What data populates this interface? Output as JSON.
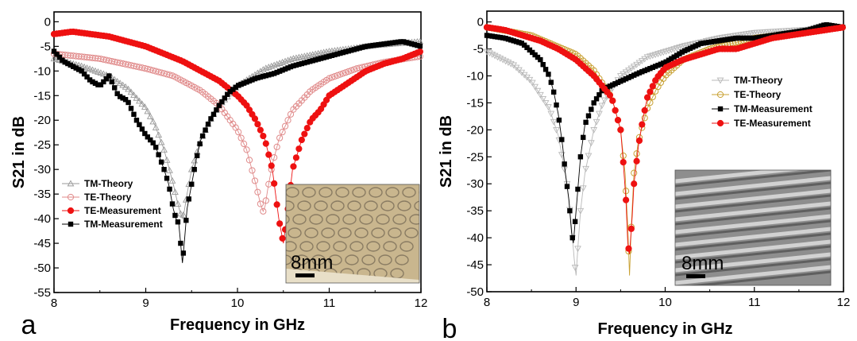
{
  "figure": {
    "panel_labels": [
      "a",
      "b"
    ],
    "inset_scale_label": "8mm"
  },
  "chart_data": [
    {
      "type": "line",
      "panel": "a",
      "title": "",
      "xlabel": "Frequency in GHz",
      "ylabel": "S21 in dB",
      "xlim": [
        8,
        12
      ],
      "ylim": [
        -55,
        2
      ],
      "xticks": [
        "8",
        "9",
        "10",
        "11",
        "12"
      ],
      "yticks": [
        "0",
        "-5",
        "-10",
        "-15",
        "-20",
        "-25",
        "-30",
        "-35",
        "-40",
        "-45",
        "-50",
        "-55"
      ],
      "legend_position": "lower-left",
      "inset": "photo of printed sample with 8mm scale bar, bottom-right",
      "series": [
        {
          "name": "TM-Theory",
          "color": "#9a9a9a",
          "marker": "open-triangle",
          "x": [
            8.0,
            8.3,
            8.6,
            8.8,
            9.0,
            9.1,
            9.2,
            9.3,
            9.35,
            9.38,
            9.4,
            9.42,
            9.45,
            9.5,
            9.6,
            9.7,
            9.8,
            10.0,
            10.3,
            10.6,
            11.0,
            11.5,
            12.0
          ],
          "y": [
            -7.5,
            -9,
            -11,
            -13.5,
            -17.5,
            -21,
            -26,
            -33,
            -37,
            -39,
            -40,
            -38.5,
            -35,
            -30,
            -24,
            -20,
            -17,
            -13,
            -9.5,
            -7.5,
            -6,
            -4.8,
            -4
          ]
        },
        {
          "name": "TE-Theory",
          "color": "#e08a8a",
          "marker": "open-circle",
          "x": [
            8.0,
            8.5,
            9.0,
            9.3,
            9.6,
            9.8,
            10.0,
            10.1,
            10.2,
            10.25,
            10.28,
            10.3,
            10.33,
            10.38,
            10.45,
            10.6,
            10.8,
            11.0,
            11.3,
            11.6,
            12.0
          ],
          "y": [
            -6.5,
            -7.5,
            -9.5,
            -11,
            -14,
            -17,
            -22,
            -26,
            -33,
            -37,
            -38.5,
            -37.5,
            -34,
            -29,
            -24,
            -18,
            -14,
            -11.5,
            -9.5,
            -8.2,
            -7
          ]
        },
        {
          "name": "TE-Measurement",
          "color": "#ee1111",
          "marker": "filled-circle",
          "x": [
            8.0,
            8.2,
            8.4,
            8.6,
            8.8,
            9.0,
            9.2,
            9.4,
            9.6,
            9.8,
            10.0,
            10.1,
            10.2,
            10.3,
            10.38,
            10.45,
            10.5,
            10.55,
            10.6,
            10.7,
            10.8,
            10.9,
            11.0,
            11.2,
            11.4,
            11.6,
            11.8,
            12.0
          ],
          "y": [
            -2.5,
            -2,
            -2.5,
            -3,
            -4,
            -5,
            -6.5,
            -8,
            -10,
            -12,
            -15,
            -17,
            -20,
            -24,
            -30,
            -40,
            -45,
            -38,
            -30,
            -24,
            -20,
            -18,
            -15,
            -12.5,
            -10,
            -8.5,
            -7.5,
            -6
          ]
        },
        {
          "name": "TM-Measurement",
          "color": "#000000",
          "marker": "filled-square",
          "x": [
            8.0,
            8.1,
            8.2,
            8.3,
            8.4,
            8.5,
            8.6,
            8.7,
            8.8,
            8.9,
            9.0,
            9.1,
            9.2,
            9.25,
            9.3,
            9.33,
            9.36,
            9.38,
            9.4,
            9.42,
            9.45,
            9.5,
            9.55,
            9.6,
            9.7,
            9.8,
            9.9,
            10.0,
            10.2,
            10.4,
            10.6,
            10.8,
            11.0,
            11.2,
            11.4,
            11.6,
            11.8,
            12.0
          ],
          "y": [
            -6,
            -8,
            -9,
            -10,
            -12,
            -13,
            -11,
            -15,
            -16,
            -20,
            -23,
            -25,
            -30,
            -33,
            -38,
            -40,
            -41,
            -45,
            -49,
            -45,
            -38,
            -33,
            -28,
            -24,
            -20,
            -17,
            -14.5,
            -13,
            -11.5,
            -10.5,
            -9,
            -8,
            -7,
            -6,
            -5,
            -4.5,
            -4,
            -5
          ]
        }
      ]
    },
    {
      "type": "line",
      "panel": "b",
      "title": "",
      "xlabel": "Frequency in GHz",
      "ylabel": "S21 in dB",
      "xlim": [
        8,
        12
      ],
      "ylim": [
        -50,
        2
      ],
      "xticks": [
        "8",
        "9",
        "10",
        "11",
        "12"
      ],
      "yticks": [
        "0",
        "-5",
        "-10",
        "-15",
        "-20",
        "-25",
        "-30",
        "-35",
        "-40",
        "-45",
        "-50"
      ],
      "legend_position": "top-right",
      "inset": "photo of corrugated sample with 8mm scale bar, bottom-right",
      "series": [
        {
          "name": "TM-Theory",
          "color": "#b8b8b8",
          "marker": "open-triangle-down",
          "x": [
            8.0,
            8.3,
            8.5,
            8.7,
            8.8,
            8.9,
            8.95,
            8.98,
            9.0,
            9.02,
            9.05,
            9.1,
            9.2,
            9.3,
            9.5,
            9.8,
            10.2,
            10.6,
            11.0,
            11.5,
            12.0
          ],
          "y": [
            -5.5,
            -8,
            -11,
            -16,
            -21,
            -30,
            -38,
            -44,
            -47,
            -42,
            -35,
            -28,
            -20,
            -15,
            -10,
            -6.5,
            -4.5,
            -3,
            -2,
            -1.5,
            -1
          ]
        },
        {
          "name": "TE-Theory",
          "color": "#c8a032",
          "marker": "open-circle",
          "x": [
            8.0,
            8.5,
            9.0,
            9.2,
            9.4,
            9.5,
            9.55,
            9.58,
            9.6,
            9.62,
            9.65,
            9.7,
            9.8,
            9.9,
            10.0,
            10.2,
            10.5,
            11.0,
            11.5,
            12.0
          ],
          "y": [
            -1,
            -2.5,
            -6,
            -9,
            -14,
            -20,
            -28,
            -38,
            -47,
            -38,
            -28,
            -22,
            -16,
            -12.5,
            -10,
            -7,
            -5,
            -3,
            -2,
            -1
          ]
        },
        {
          "name": "TM-Measurement",
          "color": "#000000",
          "marker": "filled-square",
          "x": [
            8.0,
            8.2,
            8.4,
            8.5,
            8.6,
            8.7,
            8.75,
            8.8,
            8.85,
            8.88,
            8.92,
            8.95,
            8.97,
            9.0,
            9.05,
            9.1,
            9.2,
            9.3,
            9.5,
            9.7,
            10.0,
            10.2,
            10.4,
            10.6,
            10.8,
            11.0,
            11.2,
            11.4,
            11.6,
            11.8,
            12.0
          ],
          "y": [
            -2.5,
            -3,
            -4,
            -5.5,
            -7,
            -10,
            -13,
            -17,
            -23,
            -28,
            -33,
            -39,
            -41,
            -35,
            -25,
            -19,
            -15,
            -12.5,
            -11,
            -9.5,
            -7.5,
            -5.5,
            -4,
            -3.5,
            -3,
            -3,
            -2.5,
            -2,
            -1.5,
            -0.5,
            -1
          ]
        },
        {
          "name": "TE-Measurement",
          "color": "#ee1111",
          "marker": "filled-circle",
          "x": [
            8.0,
            8.2,
            8.4,
            8.6,
            8.8,
            9.0,
            9.1,
            9.2,
            9.3,
            9.4,
            9.45,
            9.5,
            9.53,
            9.56,
            9.58,
            9.6,
            9.63,
            9.65,
            9.7,
            9.75,
            9.8,
            9.9,
            10.0,
            10.2,
            10.4,
            10.6,
            10.8,
            11.0,
            11.2,
            11.4,
            11.6,
            11.8,
            12.0
          ],
          "y": [
            -1,
            -1.5,
            -2.5,
            -3.5,
            -5,
            -7,
            -8.5,
            -10,
            -12,
            -14,
            -17,
            -20,
            -26,
            -33,
            -41,
            -43,
            -36,
            -30,
            -23,
            -18,
            -14,
            -10.5,
            -8.5,
            -7,
            -6,
            -5,
            -5,
            -4,
            -3,
            -2.5,
            -2,
            -1.5,
            -1
          ]
        }
      ]
    }
  ]
}
